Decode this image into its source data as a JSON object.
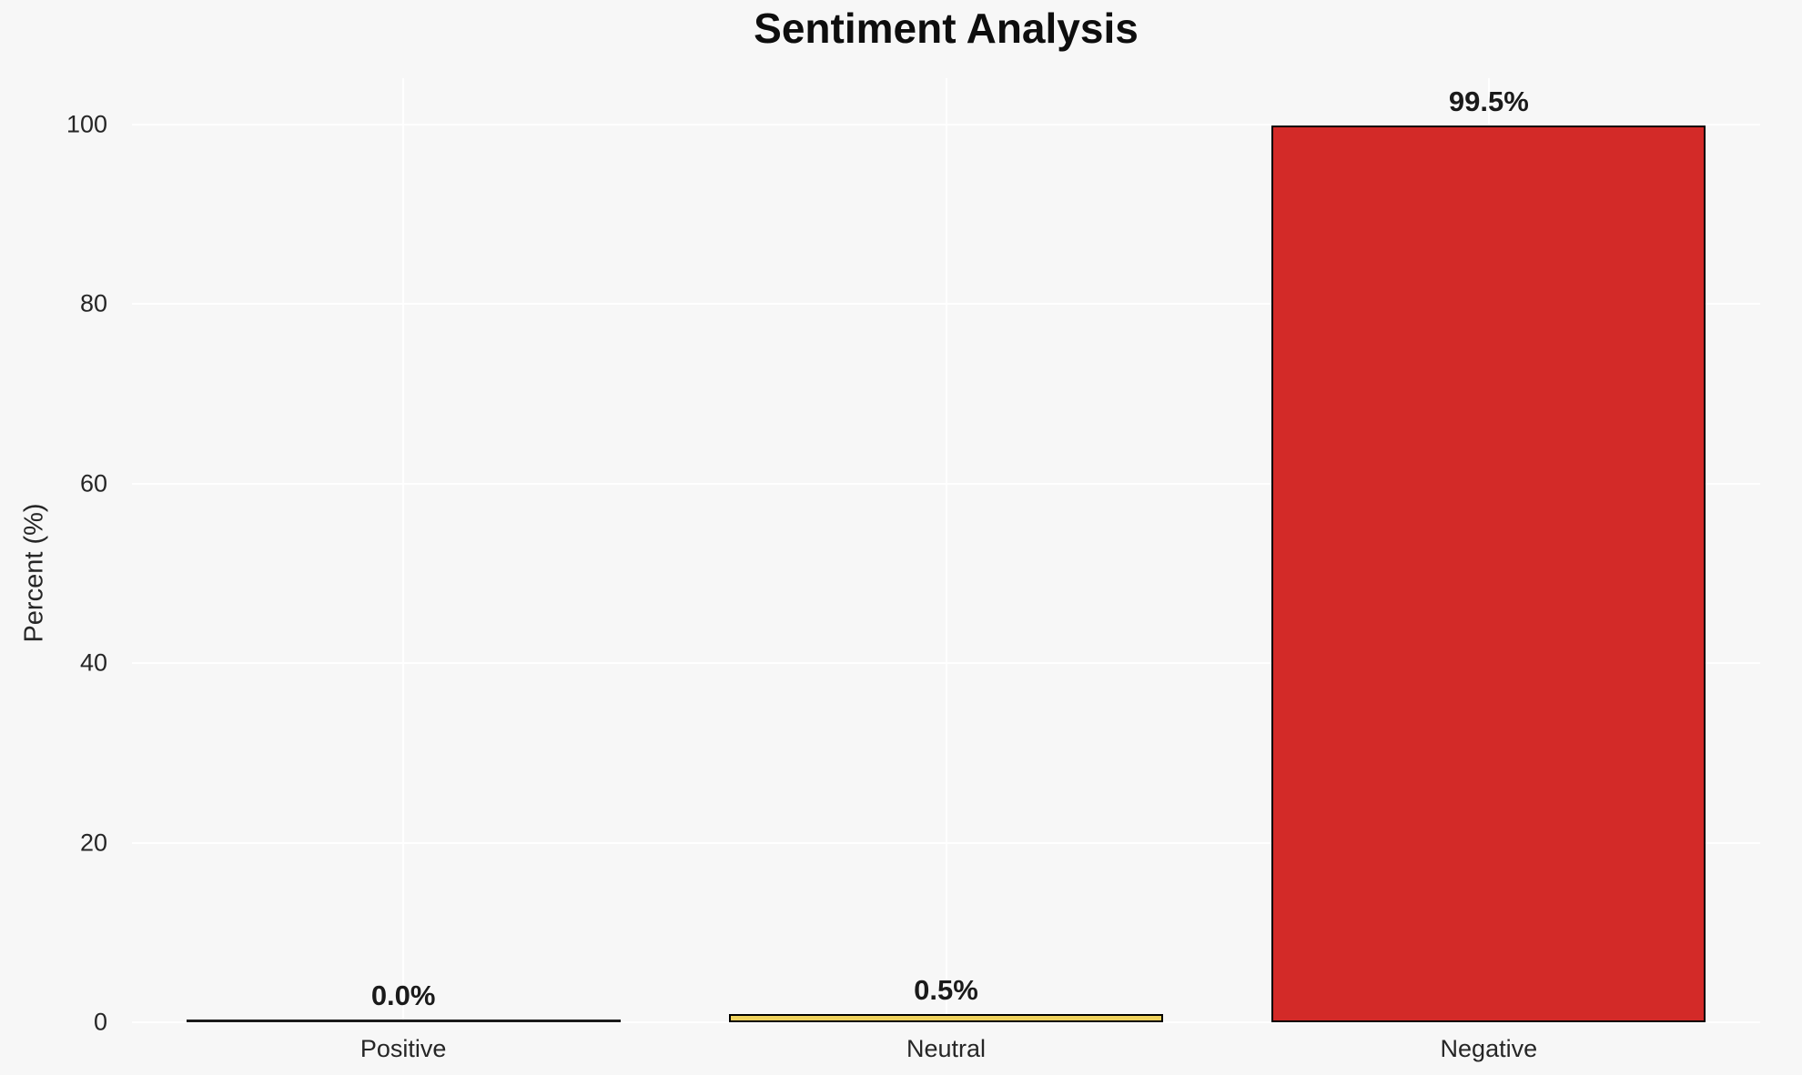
{
  "chart_data": {
    "type": "bar",
    "title": "Sentiment Analysis",
    "xlabel": "",
    "ylabel": "Percent (%)",
    "categories": [
      "Positive",
      "Neutral",
      "Negative"
    ],
    "values": [
      0.0,
      0.5,
      99.5
    ],
    "value_labels": [
      "0.0%",
      "0.5%",
      "99.5%"
    ],
    "bar_colors": [
      "#1a1a1a",
      "#eed15c",
      "#d32a28"
    ],
    "bar_edge_color": "#000000",
    "yticks": [
      0,
      20,
      40,
      60,
      80,
      100
    ],
    "ylim": [
      0,
      105
    ],
    "grid": true,
    "legend_position": "none"
  },
  "colors": {
    "background": "#f7f7f7",
    "gridline": "#ffffff",
    "title_text": "#0e0e0e",
    "tick_text": "#262626",
    "value_label_text": "#1a1a1a"
  }
}
